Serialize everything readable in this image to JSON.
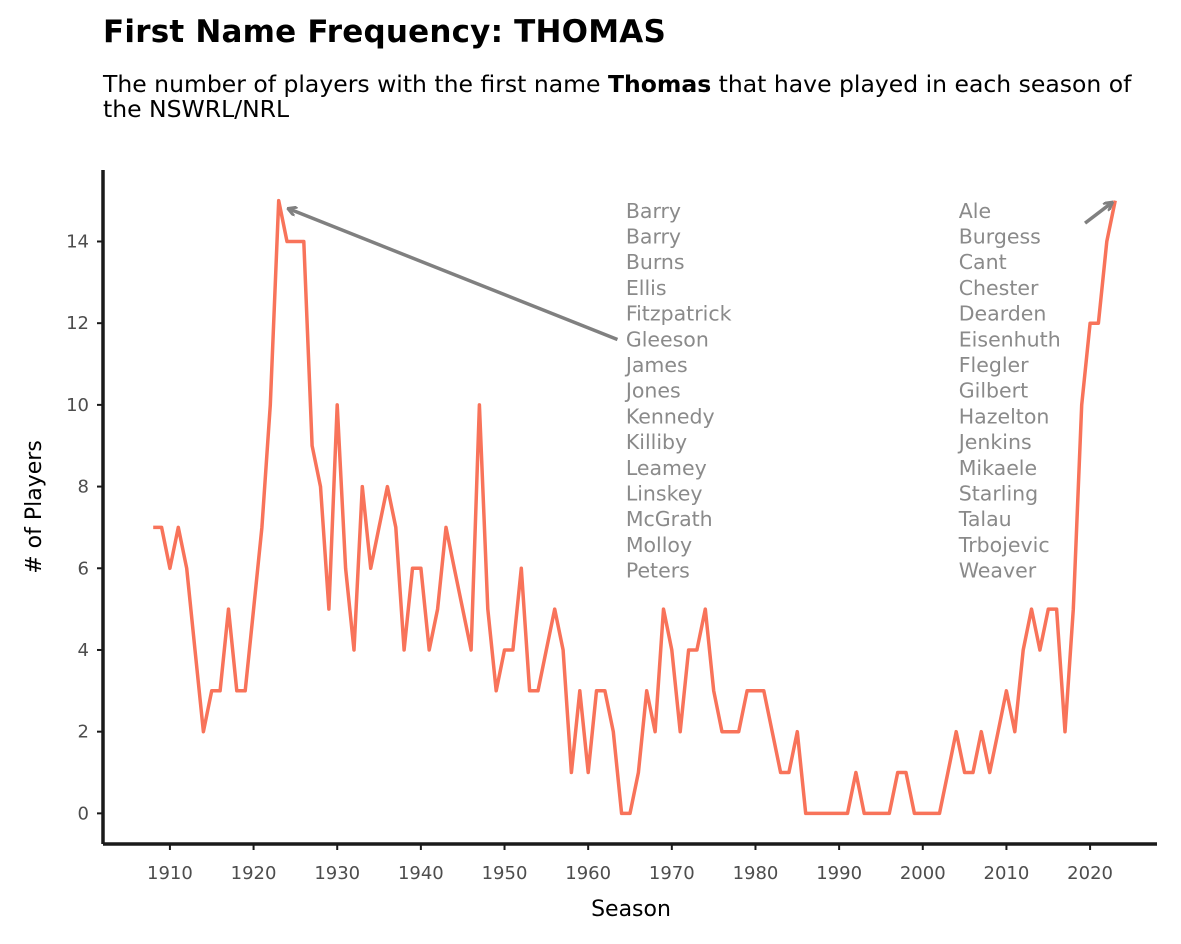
{
  "colors": {
    "line": "#f8735a",
    "axis": "#1a1a1a",
    "annotation": "#8a8a8a",
    "arrow": "#808080"
  },
  "chart_data": {
    "type": "line",
    "title": "First Name Frequency: THOMAS",
    "subtitle": {
      "before": "The number of players with the first name ",
      "bold": "Thomas",
      "after": " that have played in each season of the NSWRL/NRL"
    },
    "xlabel": "Season",
    "ylabel": "# of Players",
    "xlim": [
      1902,
      2028
    ],
    "ylim": [
      -0.75,
      15.75
    ],
    "xticks": [
      1910,
      1920,
      1930,
      1940,
      1950,
      1960,
      1970,
      1980,
      1990,
      2000,
      2010,
      2020
    ],
    "yticks": [
      0,
      2,
      4,
      6,
      8,
      10,
      12,
      14
    ],
    "grid": false,
    "legend": "none",
    "series": [
      {
        "x": [
          1908,
          1909,
          1910,
          1911,
          1912,
          1913,
          1914,
          1915,
          1916,
          1917,
          1918,
          1919,
          1920,
          1921,
          1922,
          1923,
          1924,
          1925,
          1926,
          1927,
          1928,
          1929,
          1930,
          1931,
          1932,
          1933,
          1934,
          1935,
          1936,
          1937,
          1938,
          1939,
          1940,
          1941,
          1942,
          1943,
          1944,
          1945,
          1946,
          1947,
          1948,
          1949,
          1950,
          1951,
          1952,
          1953,
          1954,
          1955,
          1956,
          1957,
          1958,
          1959,
          1960,
          1961,
          1962,
          1963,
          1964,
          1965,
          1966,
          1967,
          1968,
          1969,
          1970,
          1971,
          1972,
          1973,
          1974,
          1975,
          1976,
          1977,
          1978,
          1979,
          1980,
          1981,
          1982,
          1983,
          1984,
          1985,
          1986,
          1987,
          1988,
          1989,
          1990,
          1991,
          1992,
          1993,
          1994,
          1995,
          1996,
          1997,
          1998,
          1999,
          2000,
          2001,
          2002,
          2003,
          2004,
          2005,
          2006,
          2007,
          2008,
          2009,
          2010,
          2011,
          2012,
          2013,
          2014,
          2015,
          2016,
          2017,
          2018,
          2019,
          2020,
          2021,
          2022,
          2023
        ],
        "values": [
          7,
          7,
          6,
          7,
          6,
          4,
          2,
          3,
          3,
          5,
          3,
          3,
          5,
          7,
          10,
          15,
          14,
          14,
          14,
          9,
          8,
          5,
          10,
          6,
          4,
          8,
          6,
          7,
          8,
          7,
          4,
          6,
          6,
          4,
          5,
          7,
          6,
          5,
          4,
          10,
          5,
          3,
          4,
          4,
          6,
          3,
          3,
          4,
          5,
          4,
          1,
          3,
          1,
          3,
          3,
          2,
          0,
          0,
          1,
          3,
          2,
          5,
          4,
          2,
          4,
          4,
          5,
          3,
          2,
          2,
          2,
          3,
          3,
          3,
          2,
          1,
          1,
          2,
          0,
          0,
          0,
          0,
          0,
          0,
          1,
          0,
          0,
          0,
          0,
          1,
          1,
          0,
          0,
          0,
          0,
          1,
          2,
          1,
          1,
          2,
          1,
          2,
          3,
          2,
          4,
          5,
          4,
          5,
          5,
          2,
          5,
          10,
          12,
          12,
          14,
          15
        ]
      }
    ],
    "annotations": [
      {
        "names": [
          "Barry",
          "Barry",
          "Burns",
          "Ellis",
          "Fitzpatrick",
          "Gleeson",
          "James",
          "Jones",
          "Kennedy",
          "Killiby",
          "Leamey",
          "Linskey",
          "McGrath",
          "Molloy",
          "Peters"
        ],
        "text_at": [
          1964.5,
          14.75
        ],
        "arrow_from": [
          1963.5,
          11.6
        ],
        "arrow_to": [
          1924.2,
          14.8
        ]
      },
      {
        "names": [
          "Ale",
          "Burgess",
          "Cant",
          "Chester",
          "Dearden",
          "Eisenhuth",
          "Flegler",
          "Gilbert",
          "Hazelton",
          "Jenkins",
          "Mikaele",
          "Starling",
          "Talau",
          "Trbojevic",
          "Weaver"
        ],
        "text_at": [
          2004.3,
          14.75
        ],
        "arrow_from": [
          2019.4,
          14.45
        ],
        "arrow_to": [
          2022.6,
          14.95
        ]
      }
    ]
  }
}
